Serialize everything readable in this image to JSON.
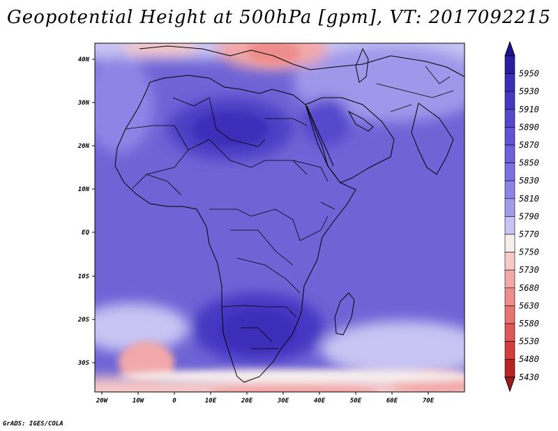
{
  "title": "Geopotential Height at 500hPa [gpm], VT: 2017092215",
  "credit": "GrADS: IGES/COLA",
  "map": {
    "lon_range": [
      -23,
      79
    ],
    "lat_range": [
      -37,
      45
    ],
    "lon_ticks": [
      "20W",
      "10W",
      "0",
      "10E",
      "20E",
      "30E",
      "40E",
      "50E",
      "60E",
      "70E"
    ],
    "lat_ticks": [
      "40N",
      "30N",
      "20N",
      "10N",
      "EQ",
      "10S",
      "20S",
      "30S"
    ]
  },
  "colorbar": {
    "levels": [
      "5950",
      "5930",
      "5910",
      "5890",
      "5870",
      "5850",
      "5830",
      "5810",
      "5790",
      "5770",
      "5750",
      "5730",
      "5680",
      "5630",
      "5580",
      "5530",
      "5480",
      "5430"
    ],
    "colors": [
      "#2a1fa0",
      "#3a2fb8",
      "#4538c2",
      "#5548cc",
      "#6154d4",
      "#6d62da",
      "#7a70e0",
      "#8d85e6",
      "#a29de9",
      "#c8c4f3",
      "#f6eded",
      "#f6c8c8",
      "#f3a9a9",
      "#ee8d8d",
      "#e77373",
      "#df5858",
      "#d63e3e",
      "#b82424"
    ],
    "top_arrow_color": "#1c1490",
    "bottom_arrow_color": "#a01c1c"
  }
}
